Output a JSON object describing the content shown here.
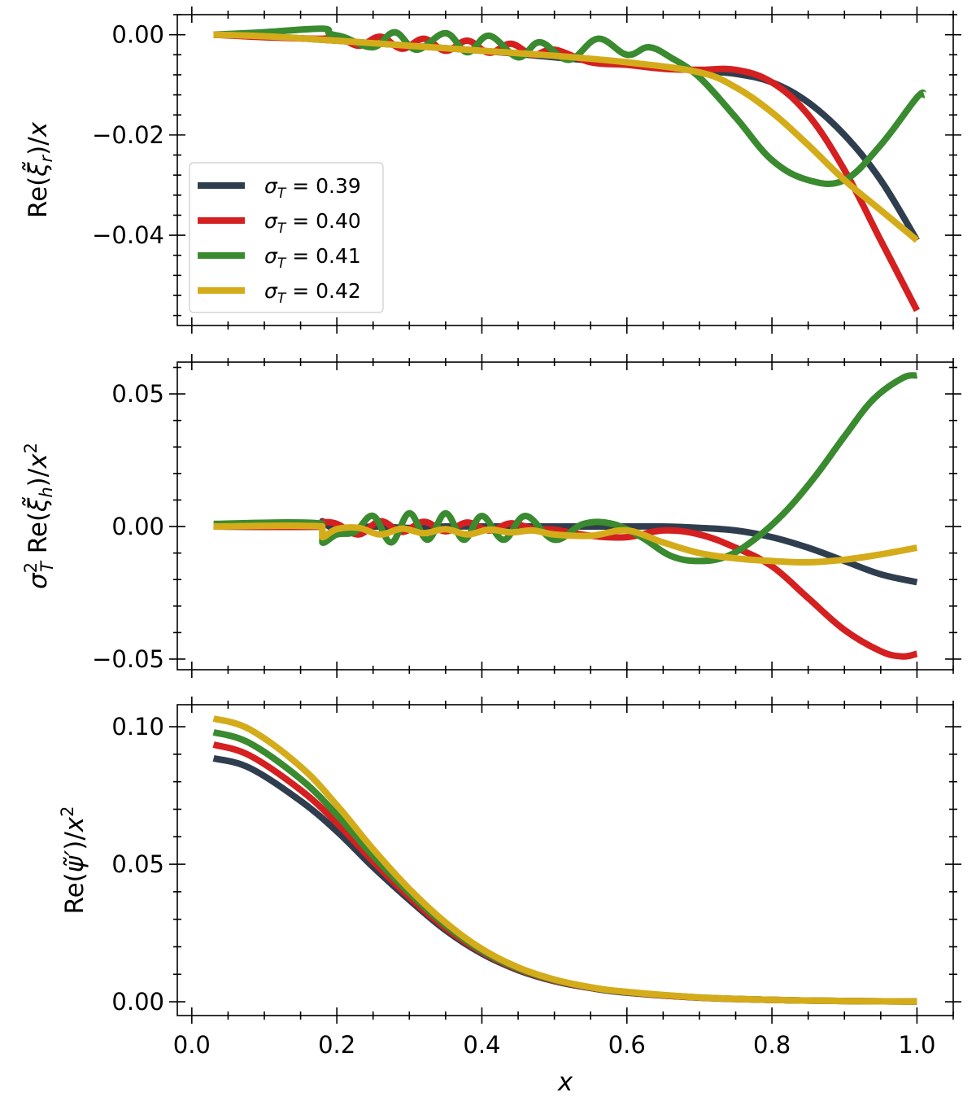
{
  "figure": {
    "type": "line",
    "description_free": true
  },
  "series_meta": [
    {
      "name": "σ_T = 0.39",
      "legend_value": "0.39",
      "color": "#2f3e4e"
    },
    {
      "name": "σ_T = 0.40",
      "legend_value": "0.40",
      "color": "#d42020"
    },
    {
      "name": "σ_T = 0.41",
      "legend_value": "0.41",
      "color": "#3a8a2f"
    },
    {
      "name": "σ_T = 0.42",
      "legend_value": "0.42",
      "color": "#d4ac1a"
    }
  ],
  "legend": {
    "symbol": "σ",
    "subscript": "T",
    "equals": " = ",
    "placement": "center-left"
  },
  "chart_data": [
    {
      "type": "line",
      "title": "",
      "xlabel": "",
      "ylabel": "Re(ξ̃_r)/x",
      "xlim": [
        -0.02,
        1.05
      ],
      "ylim": [
        -0.058,
        0.004
      ],
      "xticks": [
        0.0,
        0.2,
        0.4,
        0.6,
        0.8,
        1.0
      ],
      "yticks": [
        0.0,
        -0.02,
        -0.04
      ],
      "ytick_labels": [
        "0.00",
        "−0.02",
        "−0.04"
      ],
      "series": [
        {
          "name": "σ_T = 0.39",
          "x": [
            0.03,
            0.1,
            0.2,
            0.3,
            0.4,
            0.5,
            0.6,
            0.7,
            0.75,
            0.8,
            0.85,
            0.9,
            0.95,
            1.0
          ],
          "values": [
            0,
            -0.0003,
            -0.0012,
            -0.0022,
            -0.0032,
            -0.0045,
            -0.0058,
            -0.0072,
            -0.0078,
            -0.0095,
            -0.0135,
            -0.02,
            -0.029,
            -0.041
          ]
        },
        {
          "name": "σ_T = 0.40",
          "x": [
            0.03,
            0.1,
            0.18,
            0.2,
            0.23,
            0.26,
            0.29,
            0.32,
            0.35,
            0.38,
            0.41,
            0.44,
            0.47,
            0.5,
            0.55,
            0.6,
            0.65,
            0.7,
            0.75,
            0.8,
            0.85,
            0.9,
            0.95,
            1.0
          ],
          "values": [
            0,
            -0.0005,
            -0.0008,
            -0.0002,
            -0.0022,
            -0.0004,
            -0.0028,
            -0.0008,
            -0.0032,
            -0.0012,
            -0.0036,
            -0.0018,
            -0.004,
            -0.003,
            -0.0055,
            -0.006,
            -0.0068,
            -0.007,
            -0.007,
            -0.0095,
            -0.016,
            -0.027,
            -0.041,
            -0.055
          ]
        },
        {
          "name": "σ_T = 0.41",
          "x": [
            0.03,
            0.1,
            0.18,
            0.19,
            0.21,
            0.25,
            0.28,
            0.31,
            0.35,
            0.38,
            0.41,
            0.45,
            0.48,
            0.52,
            0.56,
            0.6,
            0.63,
            0.66,
            0.7,
            0.75,
            0.8,
            0.85,
            0.9,
            0.95,
            1.0,
            1.01
          ],
          "values": [
            0,
            0.0005,
            0.0012,
            0.0002,
            -0.0005,
            -0.0025,
            0.0005,
            -0.003,
            0.0003,
            -0.0035,
            -0.0002,
            -0.0045,
            -0.0015,
            -0.005,
            -0.0008,
            -0.004,
            -0.0025,
            -0.0045,
            -0.0085,
            -0.0165,
            -0.025,
            -0.029,
            -0.029,
            -0.022,
            -0.0125,
            -0.012
          ]
        },
        {
          "name": "σ_T = 0.42",
          "x": [
            0.03,
            0.1,
            0.2,
            0.3,
            0.4,
            0.5,
            0.6,
            0.7,
            0.75,
            0.8,
            0.85,
            0.9,
            0.95,
            1.0
          ],
          "values": [
            0,
            -0.0003,
            -0.0012,
            -0.0022,
            -0.0032,
            -0.0042,
            -0.0055,
            -0.0075,
            -0.0105,
            -0.0155,
            -0.022,
            -0.029,
            -0.035,
            -0.041
          ]
        }
      ]
    },
    {
      "type": "line",
      "title": "",
      "xlabel": "",
      "ylabel": "σ_T² Re(ξ̃_h)/x²",
      "xlim": [
        -0.02,
        1.05
      ],
      "ylim": [
        -0.054,
        0.062
      ],
      "xticks": [
        0.0,
        0.2,
        0.4,
        0.6,
        0.8,
        1.0
      ],
      "yticks": [
        0.05,
        0.0,
        -0.05
      ],
      "ytick_labels": [
        "0.05",
        "0.00",
        "−0.05"
      ],
      "series": [
        {
          "name": "σ_T = 0.39",
          "x": [
            0.03,
            0.18,
            0.18,
            0.2,
            0.25,
            0.3,
            0.35,
            0.4,
            0.45,
            0.5,
            0.55,
            0.6,
            0.65,
            0.7,
            0.75,
            0.8,
            0.85,
            0.9,
            0.95,
            1.0
          ],
          "values": [
            0,
            0,
            0.002,
            -0.001,
            0.0,
            -0.0005,
            0.0,
            0.0,
            0.0,
            0.0,
            0.0,
            0.0,
            0.0,
            -0.0005,
            -0.0015,
            -0.004,
            -0.008,
            -0.013,
            -0.018,
            -0.021
          ]
        },
        {
          "name": "σ_T = 0.40",
          "x": [
            0.03,
            0.18,
            0.18,
            0.2,
            0.23,
            0.26,
            0.29,
            0.32,
            0.35,
            0.38,
            0.41,
            0.44,
            0.47,
            0.5,
            0.55,
            0.6,
            0.65,
            0.7,
            0.75,
            0.8,
            0.85,
            0.9,
            0.95,
            0.98,
            1.0
          ],
          "values": [
            0,
            0,
            0.0015,
            0.001,
            -0.003,
            0.002,
            -0.002,
            0.0018,
            -0.0018,
            0.0015,
            -0.0015,
            0.0012,
            -0.0008,
            -0.0012,
            -0.0035,
            -0.004,
            -0.0015,
            -0.003,
            -0.008,
            -0.015,
            -0.027,
            -0.039,
            -0.047,
            -0.049,
            -0.048
          ]
        },
        {
          "name": "σ_T = 0.41",
          "x": [
            0.03,
            0.18,
            0.18,
            0.2,
            0.225,
            0.25,
            0.275,
            0.3,
            0.325,
            0.35,
            0.375,
            0.4,
            0.43,
            0.46,
            0.5,
            0.54,
            0.58,
            0.62,
            0.66,
            0.7,
            0.74,
            0.78,
            0.82,
            0.86,
            0.9,
            0.94,
            0.98,
            1.0
          ],
          "values": [
            0.001,
            0.001,
            -0.006,
            -0.003,
            -0.002,
            0.004,
            -0.006,
            0.005,
            -0.005,
            0.005,
            -0.005,
            0.004,
            -0.005,
            0.004,
            -0.005,
            0.001,
            0.001,
            -0.004,
            -0.011,
            -0.013,
            -0.011,
            -0.004,
            0.006,
            0.019,
            0.034,
            0.048,
            0.056,
            0.057
          ]
        },
        {
          "name": "σ_T = 0.42",
          "x": [
            0.03,
            0.18,
            0.18,
            0.2,
            0.23,
            0.26,
            0.29,
            0.32,
            0.35,
            0.38,
            0.41,
            0.44,
            0.47,
            0.5,
            0.55,
            0.6,
            0.65,
            0.7,
            0.75,
            0.8,
            0.85,
            0.9,
            0.95,
            1.0
          ],
          "values": [
            0,
            0,
            -0.004,
            -0.001,
            -0.0005,
            -0.003,
            -0.0008,
            -0.0025,
            -0.001,
            -0.003,
            -0.0012,
            -0.0022,
            -0.0015,
            -0.003,
            -0.0035,
            -0.0015,
            -0.006,
            -0.01,
            -0.012,
            -0.013,
            -0.0135,
            -0.0125,
            -0.0105,
            -0.008
          ]
        }
      ]
    },
    {
      "type": "line",
      "title": "",
      "xlabel": "x",
      "ylabel": "Re(ψ̃′)/x²",
      "xlim": [
        -0.02,
        1.05
      ],
      "ylim": [
        -0.005,
        0.108
      ],
      "xticks": [
        0.0,
        0.2,
        0.4,
        0.6,
        0.8,
        1.0
      ],
      "xtick_labels": [
        "0.0",
        "0.2",
        "0.4",
        "0.6",
        "0.8",
        "1.0"
      ],
      "yticks": [
        0.1,
        0.05,
        0.0
      ],
      "ytick_labels": [
        "0.10",
        "0.05",
        "0.00"
      ],
      "series": [
        {
          "name": "σ_T = 0.39",
          "x": [
            0.03,
            0.08,
            0.15,
            0.2,
            0.25,
            0.3,
            0.35,
            0.4,
            0.45,
            0.5,
            0.55,
            0.6,
            0.7,
            0.8,
            0.9,
            1.0
          ],
          "values": [
            0.0885,
            0.085,
            0.073,
            0.062,
            0.049,
            0.037,
            0.026,
            0.0175,
            0.0115,
            0.0075,
            0.005,
            0.0033,
            0.0015,
            0.0007,
            0.0003,
            0.0001
          ]
        },
        {
          "name": "σ_T = 0.40",
          "x": [
            0.03,
            0.08,
            0.15,
            0.2,
            0.25,
            0.3,
            0.35,
            0.4,
            0.45,
            0.5,
            0.55,
            0.6,
            0.7,
            0.8,
            0.9,
            1.0
          ],
          "values": [
            0.0935,
            0.0895,
            0.077,
            0.065,
            0.051,
            0.038,
            0.0268,
            0.018,
            0.0118,
            0.0077,
            0.0051,
            0.0034,
            0.0015,
            0.0007,
            0.0003,
            0.0001
          ]
        },
        {
          "name": "σ_T = 0.41",
          "x": [
            0.03,
            0.08,
            0.15,
            0.2,
            0.25,
            0.3,
            0.35,
            0.4,
            0.45,
            0.5,
            0.55,
            0.6,
            0.7,
            0.8,
            0.9,
            1.0
          ],
          "values": [
            0.098,
            0.094,
            0.081,
            0.068,
            0.053,
            0.0395,
            0.0278,
            0.0185,
            0.0121,
            0.0079,
            0.0052,
            0.0035,
            0.0016,
            0.0007,
            0.0003,
            0.0001
          ]
        },
        {
          "name": "σ_T = 0.42",
          "x": [
            0.03,
            0.08,
            0.15,
            0.2,
            0.25,
            0.3,
            0.35,
            0.4,
            0.45,
            0.5,
            0.55,
            0.6,
            0.7,
            0.8,
            0.9,
            1.0
          ],
          "values": [
            0.103,
            0.099,
            0.0855,
            0.0715,
            0.0555,
            0.041,
            0.0288,
            0.0192,
            0.0125,
            0.0081,
            0.0053,
            0.0036,
            0.0016,
            0.0007,
            0.0003,
            0.0001
          ]
        }
      ]
    }
  ]
}
